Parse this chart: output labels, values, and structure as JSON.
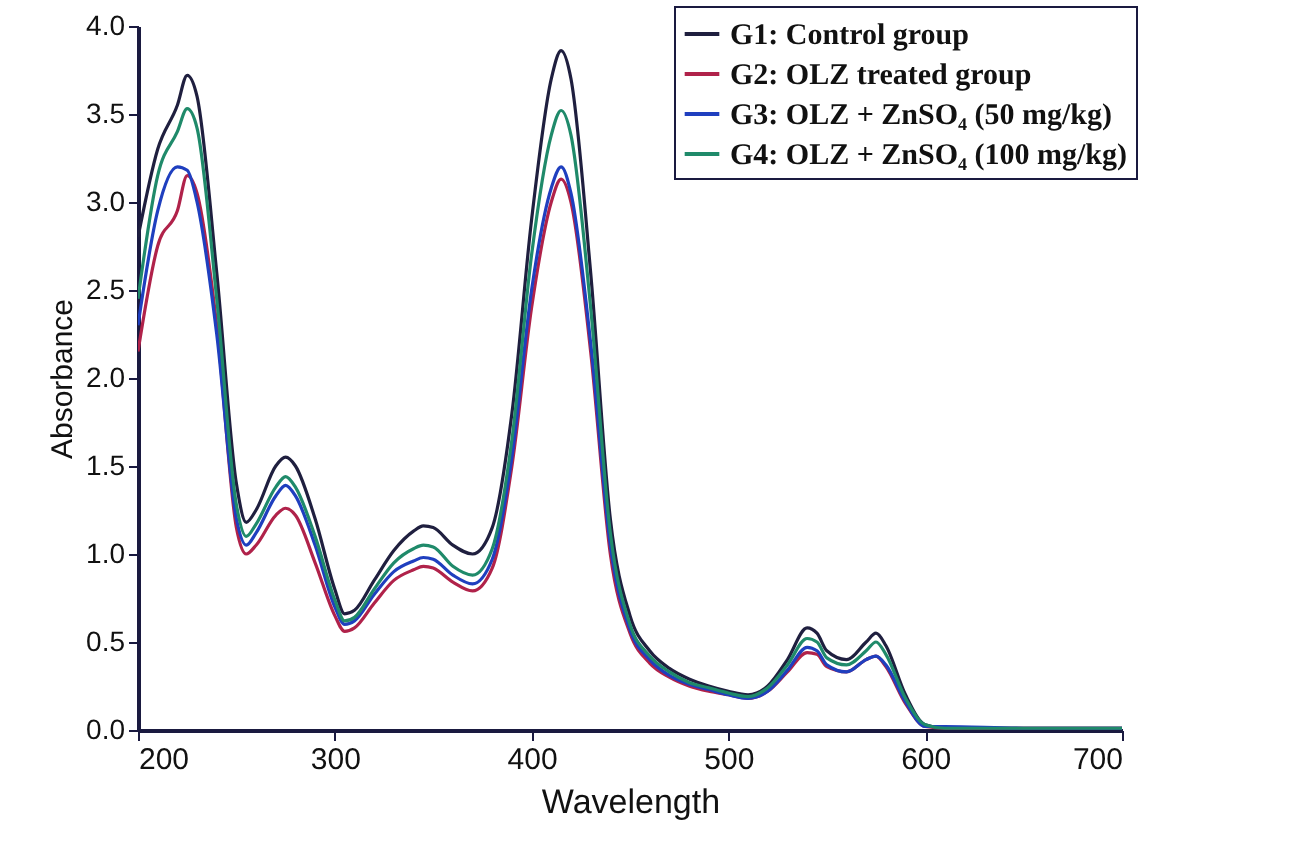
{
  "chart_data": {
    "type": "line",
    "xlabel": "Wavelength",
    "ylabel": "Absorbance",
    "x": [
      200,
      210,
      220,
      225,
      230,
      240,
      250,
      255,
      260,
      270,
      275,
      280,
      290,
      300,
      305,
      310,
      320,
      330,
      340,
      345,
      350,
      360,
      370,
      380,
      390,
      400,
      410,
      415,
      420,
      430,
      440,
      450,
      460,
      470,
      480,
      490,
      500,
      510,
      520,
      530,
      540,
      545,
      550,
      560,
      570,
      575,
      580,
      590,
      600,
      610,
      650,
      700
    ],
    "series": [
      {
        "name": "G1: Control group",
        "color": "#1f1f3f",
        "values": [
          2.8,
          3.3,
          3.55,
          3.72,
          3.6,
          2.6,
          1.4,
          1.18,
          1.25,
          1.5,
          1.55,
          1.5,
          1.2,
          0.8,
          0.66,
          0.68,
          0.85,
          1.02,
          1.13,
          1.16,
          1.15,
          1.05,
          1.0,
          1.15,
          1.8,
          2.9,
          3.7,
          3.86,
          3.7,
          2.6,
          1.2,
          0.65,
          0.45,
          0.35,
          0.29,
          0.25,
          0.22,
          0.2,
          0.25,
          0.4,
          0.58,
          0.55,
          0.45,
          0.4,
          0.5,
          0.55,
          0.48,
          0.2,
          0.03,
          0.01,
          0.01,
          0.01
        ]
      },
      {
        "name": "G2: OLZ treated group",
        "color": "#b0224a",
        "values": [
          2.15,
          2.75,
          2.95,
          3.15,
          3.05,
          2.3,
          1.15,
          1.0,
          1.05,
          1.22,
          1.26,
          1.22,
          0.95,
          0.65,
          0.56,
          0.58,
          0.72,
          0.85,
          0.91,
          0.93,
          0.92,
          0.84,
          0.79,
          0.92,
          1.5,
          2.4,
          3.0,
          3.13,
          3.0,
          2.15,
          1.0,
          0.55,
          0.38,
          0.3,
          0.25,
          0.22,
          0.2,
          0.18,
          0.22,
          0.33,
          0.44,
          0.43,
          0.36,
          0.33,
          0.4,
          0.42,
          0.36,
          0.15,
          0.02,
          0.01,
          0.01,
          0.01
        ]
      },
      {
        "name": "G3: OLZ + ZnSO₄ (50 mg/kg)",
        "color": "#1f3fbf",
        "values": [
          2.3,
          2.95,
          3.2,
          3.18,
          3.0,
          2.25,
          1.2,
          1.05,
          1.12,
          1.33,
          1.39,
          1.33,
          1.05,
          0.7,
          0.6,
          0.62,
          0.77,
          0.9,
          0.96,
          0.98,
          0.97,
          0.88,
          0.83,
          0.97,
          1.55,
          2.5,
          3.08,
          3.2,
          3.05,
          2.2,
          1.05,
          0.57,
          0.4,
          0.31,
          0.26,
          0.23,
          0.2,
          0.18,
          0.22,
          0.34,
          0.47,
          0.45,
          0.37,
          0.33,
          0.4,
          0.42,
          0.37,
          0.16,
          0.02,
          0.02,
          0.01,
          0.01
        ]
      },
      {
        "name": "G4: OLZ + ZnSO₄ (100 mg/kg)",
        "color": "#1f8a6a",
        "values": [
          2.45,
          3.15,
          3.4,
          3.53,
          3.42,
          2.45,
          1.28,
          1.1,
          1.17,
          1.38,
          1.44,
          1.38,
          1.1,
          0.74,
          0.62,
          0.64,
          0.8,
          0.95,
          1.03,
          1.05,
          1.04,
          0.93,
          0.88,
          1.03,
          1.65,
          2.7,
          3.38,
          3.52,
          3.38,
          2.4,
          1.12,
          0.6,
          0.42,
          0.33,
          0.27,
          0.24,
          0.21,
          0.19,
          0.24,
          0.37,
          0.52,
          0.5,
          0.41,
          0.37,
          0.45,
          0.5,
          0.43,
          0.18,
          0.03,
          0.01,
          0.01,
          0.01
        ]
      }
    ],
    "xlim": [
      200,
      700
    ],
    "xticks": [
      200,
      300,
      400,
      500,
      600,
      700
    ],
    "ylim": [
      0,
      4
    ],
    "yticks": [
      {
        "value": 0,
        "label": "0.0"
      },
      {
        "value": 0.5,
        "label": "0.5"
      },
      {
        "value": 1,
        "label": "1.0"
      },
      {
        "value": 1.5,
        "label": "1.5"
      },
      {
        "value": 2,
        "label": "2.0"
      },
      {
        "value": 2.5,
        "label": "2.5"
      },
      {
        "value": 3,
        "label": "3.0"
      },
      {
        "value": 3.5,
        "label": "3.5"
      },
      {
        "value": 4,
        "label": "4.0"
      }
    ],
    "legend": "top right",
    "grid": false,
    "line_style": "solid"
  }
}
